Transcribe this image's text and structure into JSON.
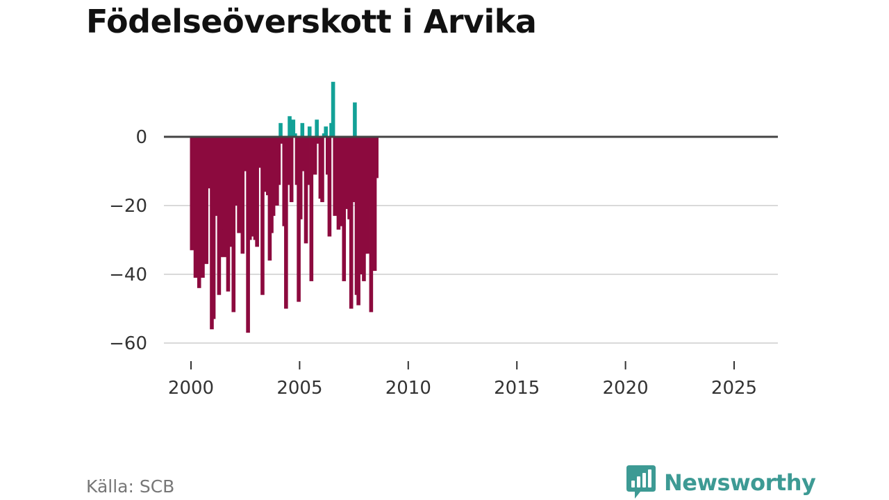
{
  "title": "Födelseöverskott i Arvika",
  "source": "Källa: SCB",
  "brand": {
    "name": "Newsworthy",
    "color": "#3d9a94"
  },
  "colors": {
    "positive": "#12a197",
    "negative": "#8c0a3e",
    "zero_line": "#444444",
    "grid": "#d9d9d9"
  },
  "chart_data": {
    "type": "bar",
    "title": "Födelseöverskott i Arvika",
    "xlabel": "",
    "ylabel": "",
    "xlim": [
      1999.75,
      2026.25
    ],
    "ylim": [
      -66,
      17
    ],
    "yticks": [
      0,
      -20,
      -40,
      -60
    ],
    "ytick_labels": [
      "0",
      "−20",
      "−40",
      "−60"
    ],
    "xticks": [
      2000,
      2005,
      2010,
      2015,
      2020,
      2025
    ],
    "xtick_labels": [
      "2000",
      "2005",
      "2010",
      "2015",
      "2020",
      "2025"
    ],
    "grid": true,
    "legend": "none",
    "bar_interval": "month",
    "start": "2000-01",
    "values": [
      -33,
      -30,
      -41,
      -33,
      -44,
      -29,
      -41,
      -26,
      -37,
      -15,
      -11,
      -56,
      -53,
      -21,
      -23,
      -46,
      -35,
      -27,
      -35,
      -33,
      -45,
      -26,
      -32,
      -51,
      -20,
      -19,
      -28,
      -16,
      -34,
      0,
      -10,
      -57,
      -30,
      -29,
      -19,
      -30,
      -32,
      -9,
      -5,
      -46,
      -16,
      -4,
      -17,
      -36,
      -28,
      -23,
      -18,
      -20,
      -14,
      4,
      -2,
      -26,
      -50,
      -14,
      6,
      -19,
      5,
      1,
      -14,
      -48,
      -24,
      4,
      -10,
      -31,
      -14,
      3,
      -42,
      -7,
      -11,
      5,
      -2,
      -18,
      -19,
      1,
      3,
      -11,
      -29,
      4,
      16,
      -23,
      -18,
      -27,
      -26,
      -20,
      -42,
      -13,
      -21,
      -24,
      -50,
      -19,
      10,
      -46,
      -49,
      -40,
      -40,
      -42,
      -34,
      -34,
      -20,
      -51,
      -35,
      -39,
      -12
    ]
  }
}
